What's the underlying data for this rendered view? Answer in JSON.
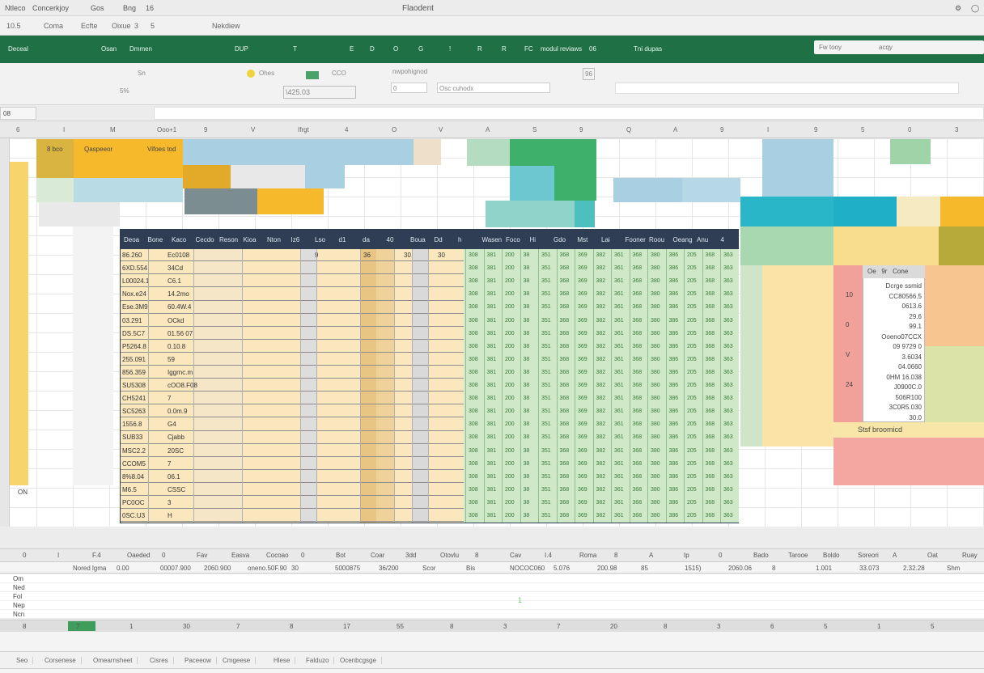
{
  "window": {
    "menu": [
      "Ntleco",
      "Concerkjoy",
      "Gos",
      "Bng",
      "16"
    ],
    "title": "Flaodent"
  },
  "quickbar": [
    "10.5",
    "Coma",
    "Ecfte",
    "Oixue",
    "3",
    "5",
    "Nekdiew"
  ],
  "ribbon": {
    "items": [
      "Deceal",
      "Osan",
      "Dmmen",
      "DUP",
      "T",
      "E",
      "D",
      "O",
      "G",
      "!",
      "R",
      "R",
      "FC",
      "modul",
      "reviaws",
      "06",
      "Tni dupas"
    ],
    "search_placeholder": "Fw tooy",
    "search_hint": "acqy"
  },
  "tools": {
    "labels": [
      "Sn",
      "5%",
      "Ohes",
      "CCO",
      "\\425.03",
      "nwpohignod",
      "0",
      "Osc cuhodx",
      "96"
    ]
  },
  "formula_bar": {
    "name_box": "08",
    "value": ""
  },
  "column_headers": [
    "6",
    "I",
    "M",
    "Ooo+1",
    "9",
    "V",
    "Ifrgt",
    "4",
    "O",
    "V",
    "A",
    "S",
    "9",
    "Q",
    "A",
    "9",
    "I",
    "9",
    "5",
    "0",
    "3"
  ],
  "top_blocks": {
    "label_a": "8 bco",
    "label_b": "Qaspeeor",
    "label_c": "Vifoes tod",
    "row_label": "ON"
  },
  "table": {
    "headers": [
      "Deoa",
      "Bone",
      "Kaco",
      "Cecdo",
      "Reson",
      "Kioa",
      "Nton",
      "Iz6",
      "Lso",
      "d1",
      "da",
      "40",
      "Boua",
      "Dd",
      "h",
      "Wasen",
      "Foco",
      "Hi",
      "Gdo",
      "Mst",
      "Lai",
      "Fooner",
      "Roou",
      "Oeang",
      "Anu",
      "4"
    ],
    "rows": [
      [
        "86.260",
        "Ec0108",
        "9",
        "36",
        "30",
        "30"
      ],
      [
        "6XD.554",
        "34Cd"
      ],
      [
        "L00024.1",
        "C6.1"
      ],
      [
        "Nox.e24",
        "14.2mo"
      ],
      [
        "Ese.3M9",
        "60.4W.4"
      ],
      [
        "03.291",
        "OCkd"
      ],
      [
        "DS.5C7",
        "01.56 07"
      ],
      [
        "P5264.8",
        "0.10.8"
      ],
      [
        "255.091",
        "59"
      ],
      [
        "856.359",
        "Iggrnc.m"
      ],
      [
        "SU5308",
        "cOO8.F08"
      ],
      [
        "CH5241",
        "7"
      ],
      [
        "SC5263",
        "0.0m.9"
      ],
      [
        "1556.8",
        "G4"
      ],
      [
        "SUB33",
        "Cjabb"
      ],
      [
        "MSC2.2",
        "20SC"
      ],
      [
        "CCOM5",
        "7"
      ],
      [
        "8%8.04",
        "06.1"
      ],
      [
        "M6.5",
        "CSSC"
      ],
      [
        "PC0OC",
        "3"
      ],
      [
        "0SC.U3",
        "H"
      ]
    ],
    "green_cells": [
      "308",
      "381",
      "200",
      "38",
      "351",
      "368",
      "369",
      "382",
      "361",
      "368",
      "380",
      "386",
      "205",
      "368",
      "363"
    ]
  },
  "side_panel": {
    "header": [
      "Oe",
      "9r",
      "Cone"
    ],
    "values": [
      "Dcrge ssmid",
      "CC80566.5",
      "0613.6",
      "29.6",
      "99.1",
      "Ooeno07CCX",
      "09 9729 0",
      "3.6034",
      "04.0660",
      "0HM 16.038",
      "J0900C.0",
      "506R100",
      "3C0R5.030",
      "30.0"
    ],
    "left_marks": [
      "10",
      "0",
      "V",
      "24"
    ],
    "footer": "Stsf broomicd"
  },
  "bottom": {
    "headers": [
      "0",
      "I",
      "F.4",
      "Oaeded",
      "0",
      "Fav",
      "Easva",
      "Cocoao",
      "0",
      "Bot",
      "Coar",
      "3dd",
      "Otovlu",
      "8",
      "Cav",
      "I.4",
      "Roma",
      "8",
      "A",
      "Ip",
      "0",
      "Bado",
      "Tarooe",
      "Boldo",
      "Soreori",
      "A",
      "Oat",
      "Ruay"
    ],
    "values": [
      "Nored lgma",
      "0.00",
      "00007.900",
      "2060.900",
      "oneno.50F.90",
      "30",
      "5000875",
      "36/200",
      "Scor",
      "Bis",
      "NOCOC060",
      "5.076",
      "200.98",
      "85",
      "1515)",
      "2060.06",
      "8",
      "1.001",
      "33.073",
      "2.32.28",
      "Shm"
    ],
    "row_labels": [
      "Om",
      "Ned",
      "Fol",
      "Nep",
      "Ncn"
    ],
    "center_mark": "1",
    "footer": [
      "8",
      "7",
      "1",
      "30",
      "7",
      "8",
      "17",
      "55",
      "8",
      "3",
      "7",
      "20",
      "8",
      "3",
      "6",
      "5",
      "1",
      "5"
    ]
  },
  "sheet_tabs": [
    "Seo",
    "Corsenese",
    "Omearnsheet",
    "Cisres",
    "Paceeow",
    "Cmgeese",
    "Hlese",
    "Falduzo",
    "Ocenbcgsge"
  ],
  "colors": {
    "ribbon": "#1f7145",
    "table_header": "#2f3e55",
    "amber": "#f5b92b",
    "green_fill": "#cfe8c7",
    "salmon": "#f2a09a",
    "cyan": "#29b6c9"
  }
}
